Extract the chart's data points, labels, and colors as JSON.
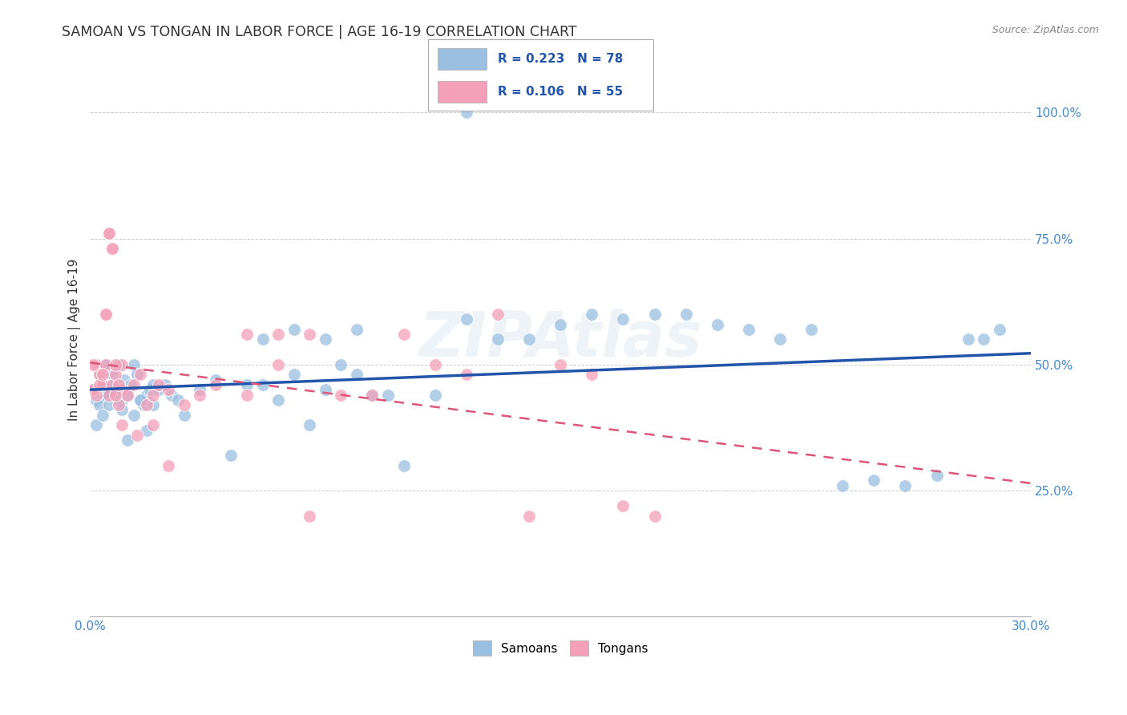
{
  "title": "SAMOAN VS TONGAN IN LABOR FORCE | AGE 16-19 CORRELATION CHART",
  "source": "Source: ZipAtlas.com",
  "ylabel": "In Labor Force | Age 16-19",
  "xlim": [
    0.0,
    0.3
  ],
  "ylim": [
    0.0,
    1.1
  ],
  "xticks": [
    0.0,
    0.05,
    0.1,
    0.15,
    0.2,
    0.25,
    0.3
  ],
  "xtick_labels": [
    "0.0%",
    "",
    "",
    "",
    "",
    "",
    "30.0%"
  ],
  "ytick_positions": [
    0.25,
    0.5,
    0.75,
    1.0
  ],
  "ytick_labels": [
    "25.0%",
    "50.0%",
    "75.0%",
    "100.0%"
  ],
  "samoans_color": "#9abfe0",
  "tongans_color": "#f4a0b8",
  "samoans_line_color": "#2255aa",
  "tongans_line_color": "#dd5577",
  "R_samoans": 0.223,
  "N_samoans": 78,
  "R_tongans": 0.106,
  "N_tongans": 55,
  "legend_label_samoans": "Samoans",
  "legend_label_tongans": "Tongans",
  "watermark": "ZIPAtlas",
  "background_color": "#ffffff",
  "grid_color": "#cccccc",
  "samoans_x": [
    0.001,
    0.002,
    0.003,
    0.004,
    0.005,
    0.006,
    0.007,
    0.008,
    0.009,
    0.01,
    0.011,
    0.012,
    0.013,
    0.014,
    0.015,
    0.016,
    0.017,
    0.018,
    0.019,
    0.02,
    0.002,
    0.003,
    0.004,
    0.005,
    0.006,
    0.007,
    0.008,
    0.009,
    0.01,
    0.012,
    0.014,
    0.016,
    0.018,
    0.02,
    0.022,
    0.024,
    0.026,
    0.028,
    0.03,
    0.035,
    0.04,
    0.045,
    0.05,
    0.055,
    0.06,
    0.065,
    0.07,
    0.075,
    0.08,
    0.085,
    0.09,
    0.095,
    0.1,
    0.11,
    0.12,
    0.13,
    0.14,
    0.15,
    0.16,
    0.17,
    0.18,
    0.19,
    0.2,
    0.21,
    0.22,
    0.23,
    0.24,
    0.25,
    0.26,
    0.27,
    0.28,
    0.29,
    0.055,
    0.065,
    0.075,
    0.085,
    0.12,
    0.285
  ],
  "samoans_y": [
    0.45,
    0.43,
    0.48,
    0.46,
    0.5,
    0.44,
    0.48,
    0.45,
    0.5,
    0.43,
    0.47,
    0.44,
    0.46,
    0.5,
    0.48,
    0.43,
    0.42,
    0.44,
    0.45,
    0.46,
    0.38,
    0.42,
    0.4,
    0.44,
    0.42,
    0.46,
    0.44,
    0.43,
    0.41,
    0.35,
    0.4,
    0.43,
    0.37,
    0.42,
    0.45,
    0.46,
    0.44,
    0.43,
    0.4,
    0.45,
    0.47,
    0.32,
    0.46,
    0.46,
    0.43,
    0.48,
    0.38,
    0.45,
    0.5,
    0.48,
    0.44,
    0.44,
    0.3,
    0.44,
    0.59,
    0.55,
    0.55,
    0.58,
    0.6,
    0.59,
    0.6,
    0.6,
    0.58,
    0.57,
    0.55,
    0.57,
    0.26,
    0.27,
    0.26,
    0.28,
    0.55,
    0.57,
    0.55,
    0.57,
    0.55,
    0.57,
    1.0,
    0.55
  ],
  "tongans_x": [
    0.001,
    0.002,
    0.003,
    0.004,
    0.005,
    0.006,
    0.007,
    0.008,
    0.009,
    0.01,
    0.001,
    0.002,
    0.003,
    0.004,
    0.005,
    0.006,
    0.007,
    0.008,
    0.009,
    0.01,
    0.012,
    0.014,
    0.016,
    0.018,
    0.02,
    0.022,
    0.025,
    0.03,
    0.035,
    0.04,
    0.005,
    0.006,
    0.007,
    0.008,
    0.05,
    0.06,
    0.07,
    0.08,
    0.09,
    0.1,
    0.11,
    0.12,
    0.13,
    0.05,
    0.06,
    0.07,
    0.14,
    0.15,
    0.16,
    0.17,
    0.01,
    0.015,
    0.02,
    0.025,
    0.18
  ],
  "tongans_y": [
    0.45,
    0.5,
    0.48,
    0.46,
    0.5,
    0.44,
    0.46,
    0.48,
    0.42,
    0.45,
    0.5,
    0.44,
    0.46,
    0.48,
    0.6,
    0.76,
    0.73,
    0.44,
    0.46,
    0.5,
    0.44,
    0.46,
    0.48,
    0.42,
    0.44,
    0.46,
    0.45,
    0.42,
    0.44,
    0.46,
    0.6,
    0.76,
    0.73,
    0.5,
    0.44,
    0.5,
    0.56,
    0.44,
    0.44,
    0.56,
    0.5,
    0.48,
    0.6,
    0.56,
    0.56,
    0.2,
    0.2,
    0.5,
    0.48,
    0.22,
    0.38,
    0.36,
    0.38,
    0.3,
    0.2
  ]
}
